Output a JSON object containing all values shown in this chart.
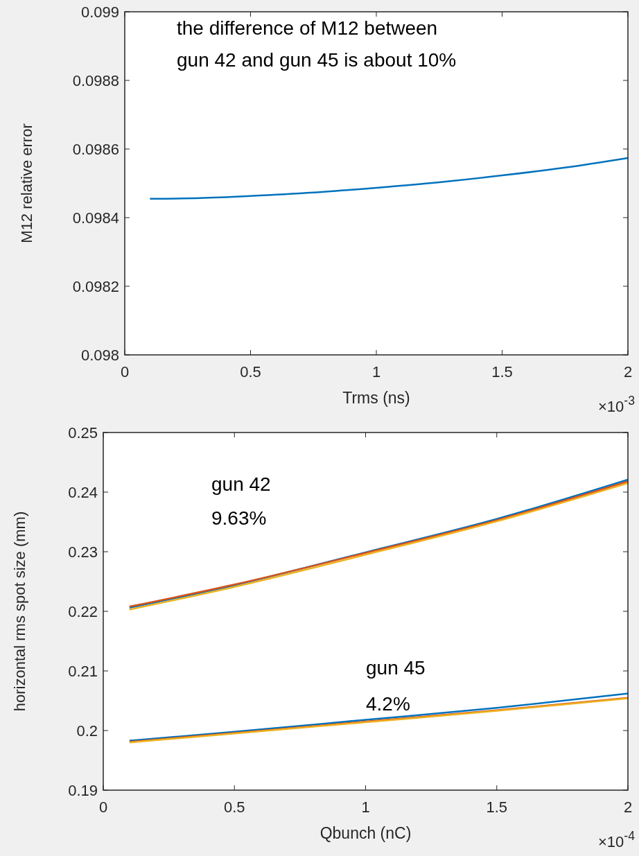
{
  "chart_data": [
    {
      "type": "line",
      "xlabel": "Trms (ns)",
      "ylabel": "M12 relative error",
      "xlim": [
        0,
        2
      ],
      "xticks": [
        0,
        0.5,
        1,
        1.5,
        2
      ],
      "ylim": [
        0.098,
        0.099
      ],
      "yticks": [
        0.098,
        0.0982,
        0.0984,
        0.0986,
        0.0988,
        0.099
      ],
      "grid": false,
      "annotations": [
        "the difference of M12 between\ngun 42 and gun 45 is about 10%",
        "×10$^{-3}$"
      ],
      "series": [
        {
          "color": "#0072bd",
          "x": [
            0.1,
            0.3,
            0.5,
            0.75,
            1,
            1.25,
            1.5,
            1.75,
            2
          ],
          "values": [
            0.098455,
            0.098457,
            0.098463,
            0.098473,
            0.098487,
            0.098503,
            0.098523,
            0.098546,
            0.098574
          ]
        }
      ]
    },
    {
      "type": "line",
      "xlabel": "Qbunch (nC)",
      "ylabel": "horizontal rms spot size (mm)",
      "xlim": [
        0,
        2
      ],
      "xticks": [
        0,
        0.5,
        1,
        1.5,
        2
      ],
      "ylim": [
        0.19,
        0.25
      ],
      "yticks": [
        0.19,
        0.2,
        0.21,
        0.22,
        0.23,
        0.24,
        0.25
      ],
      "grid": false,
      "annotations": [
        "gun 42",
        "9.63%",
        "gun 45",
        "4.2%",
        "×10$^{-4}$"
      ],
      "series": [
        {
          "color": "#0072bd",
          "x": [
            0.1,
            0.5,
            1,
            1.5,
            2
          ],
          "values": [
            0.2206,
            0.2244,
            0.2299,
            0.2355,
            0.2421
          ]
        },
        {
          "color": "#d95319",
          "x": [
            0.1,
            0.5,
            1,
            1.5,
            2
          ],
          "values": [
            0.2208,
            0.2245,
            0.2298,
            0.2353,
            0.2418
          ]
        },
        {
          "color": "#edb120",
          "x": [
            0.1,
            0.5,
            1,
            1.5,
            2
          ],
          "values": [
            0.2203,
            0.2241,
            0.2295,
            0.2351,
            0.2415
          ]
        },
        {
          "color": "#0072bd",
          "x": [
            0.1,
            0.5,
            1,
            1.5,
            2
          ],
          "values": [
            0.1983,
            0.1998,
            0.2018,
            0.2038,
            0.2062
          ]
        },
        {
          "color": "#d95319",
          "x": [
            0.1,
            0.5,
            1,
            1.5,
            2
          ],
          "values": [
            0.1981,
            0.1996,
            0.2015,
            0.2034,
            0.2055
          ]
        },
        {
          "color": "#edb120",
          "x": [
            0.1,
            0.5,
            1,
            1.5,
            2
          ],
          "values": [
            0.198,
            0.1995,
            0.2014,
            0.2033,
            0.2054
          ]
        }
      ]
    }
  ]
}
